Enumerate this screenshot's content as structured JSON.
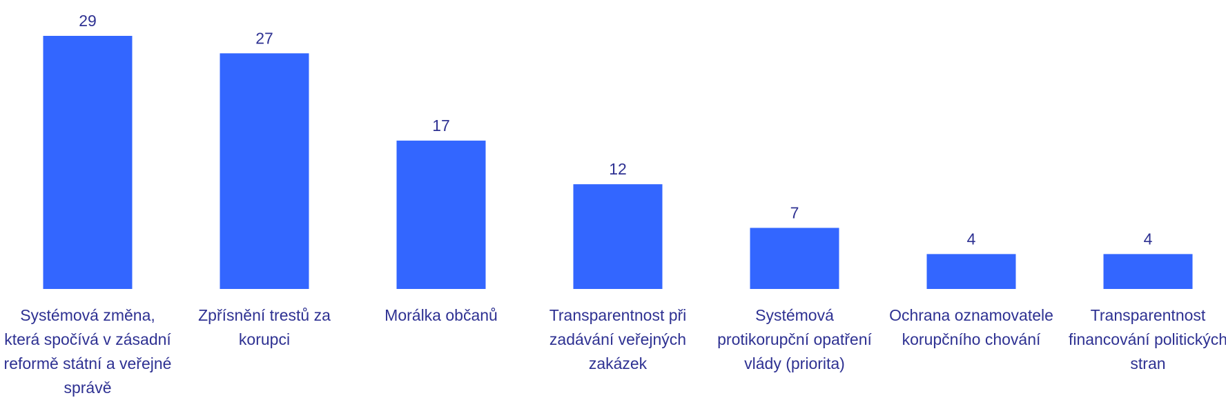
{
  "chart_data": {
    "type": "bar",
    "categories": [
      "Systémová změna, která spočívá v zásadní reformě státní a veřejné správě",
      "Zpřísnění trestů za korupci",
      "Morálka občanů",
      "Transparentnost při zadávání veřejných zakázek",
      "Systémová protikorupční opatření vlády (priorita)",
      "Ochrana oznamovatele korupčního chování",
      "Transparentnost financování politických stran"
    ],
    "values": [
      29,
      27,
      17,
      12,
      7,
      4,
      4
    ],
    "color": "#3366ff"
  }
}
